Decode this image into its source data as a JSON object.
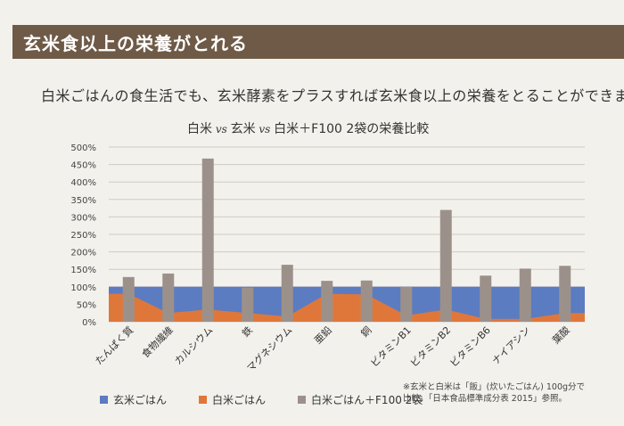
{
  "header": {
    "title": "玄米食以上の栄養がとれる"
  },
  "subtitle": "白米ごはんの食生活でも、玄米酵素をプラスすれば玄米食以上の栄養をとることができます",
  "chart_data": {
    "type": "bar",
    "title": "白米 vs 玄米 vs 白米＋F100 2袋の栄養比較",
    "title_parts": [
      "白米",
      " vs ",
      "玄米",
      " vs ",
      "白米＋F100 2袋の栄養比較"
    ],
    "categories": [
      "たんぱく質",
      "食物繊維",
      "カルシウム",
      "鉄",
      "マグネシウム",
      "亜鉛",
      "銅",
      "ビタミンB1",
      "ビタミンB2",
      "ビタミンB6",
      "ナイアシン",
      "葉酸"
    ],
    "series": [
      {
        "name": "玄米ごはん",
        "type": "area",
        "color": "#5b7cc1",
        "values": [
          100,
          100,
          100,
          100,
          100,
          100,
          100,
          100,
          100,
          100,
          100,
          100
        ]
      },
      {
        "name": "白米ごはん",
        "type": "area",
        "color": "#e0773a",
        "values": [
          80,
          25,
          35,
          25,
          15,
          80,
          78,
          18,
          35,
          8,
          8,
          25
        ]
      },
      {
        "name": "白米ごはん＋F100 2袋",
        "type": "bar",
        "color": "#9c918a",
        "values": [
          128,
          138,
          467,
          98,
          163,
          117,
          118,
          100,
          320,
          132,
          152,
          160
        ]
      }
    ],
    "ylim": [
      0,
      500
    ],
    "yticks": [
      "0%",
      "50%",
      "100%",
      "150%",
      "200%",
      "250%",
      "300%",
      "350%",
      "400%",
      "450%",
      "500%"
    ],
    "grid": true,
    "legend_position": "bottom"
  },
  "footnote": {
    "line1": "※玄米と白米は「飯」(炊いたごはん) 100g分で",
    "line2": "比較。「日本食品標準成分表 2015」参照。"
  }
}
